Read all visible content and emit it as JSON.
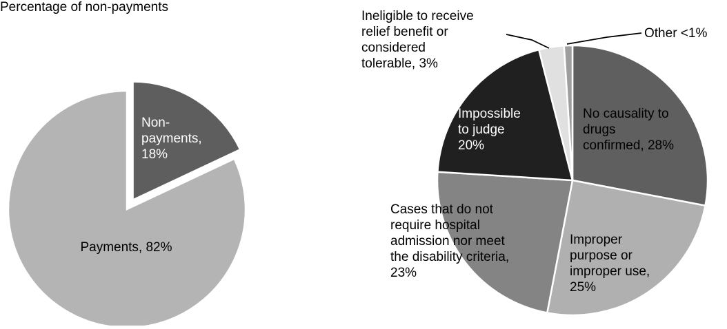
{
  "figure": {
    "left_title": "Percentage of non-payments"
  },
  "chart_data": [
    {
      "type": "pie",
      "title": "Percentage of non-payments",
      "slices": [
        {
          "label": "Non-payments",
          "value": 18,
          "value_label": "18%",
          "color": "#5e5e5e",
          "exploded": true
        },
        {
          "label": "Payments",
          "value": 82,
          "value_label": "82%",
          "color": "#b4b4b4",
          "exploded": false
        }
      ],
      "slice_labels": [
        {
          "lines": [
            "Non-",
            "payments,",
            "18%"
          ],
          "color": "#ffffff"
        },
        {
          "lines": [
            "Payments, 82%"
          ],
          "color": "#000000"
        }
      ],
      "start_angle_deg": 0,
      "direction": "clockwise"
    },
    {
      "type": "pie",
      "title": "",
      "slices": [
        {
          "label": "No causality to drugs confirmed",
          "value": 28,
          "value_label": "28%",
          "color": "#5f5f5f"
        },
        {
          "label": "Improper purpose or improper use",
          "value": 25,
          "value_label": "25%",
          "color": "#b0b0b0"
        },
        {
          "label": "Cases that do not require hospital admission nor meet the disability criteria",
          "value": 23,
          "value_label": "23%",
          "color": "#848484"
        },
        {
          "label": "Impossible to judge",
          "value": 20,
          "value_label": "20%",
          "color": "#202020"
        },
        {
          "label": "Ineligible to receive relief benefit or considered tolerable",
          "value": 3,
          "value_label": "3%",
          "color": "#e0e0e0"
        },
        {
          "label": "Other",
          "value": 1,
          "value_label": "<1%",
          "color": "#9e9e9e"
        }
      ],
      "slice_labels": [
        {
          "lines": [
            "No causality to",
            "drugs",
            "confirmed, 28%"
          ],
          "color": "#000000"
        },
        {
          "lines": [
            "Improper",
            "purpose or",
            "improper use,",
            "25%"
          ],
          "color": "#000000"
        },
        {
          "lines": [
            "Cases that do not",
            "require hospital",
            "admission nor meet",
            "the disability criteria,",
            "23%"
          ],
          "color": "#000000"
        },
        {
          "lines": [
            "Impossible",
            "to judge",
            "20%"
          ],
          "color": "#ffffff"
        },
        {
          "lines": [
            "Ineligible to receive",
            "relief benefit or",
            "considered",
            "tolerable, 3%"
          ],
          "color": "#000000"
        },
        {
          "lines": [
            "Other <1%"
          ],
          "color": "#000000"
        }
      ],
      "start_angle_deg": 0,
      "direction": "clockwise"
    }
  ]
}
